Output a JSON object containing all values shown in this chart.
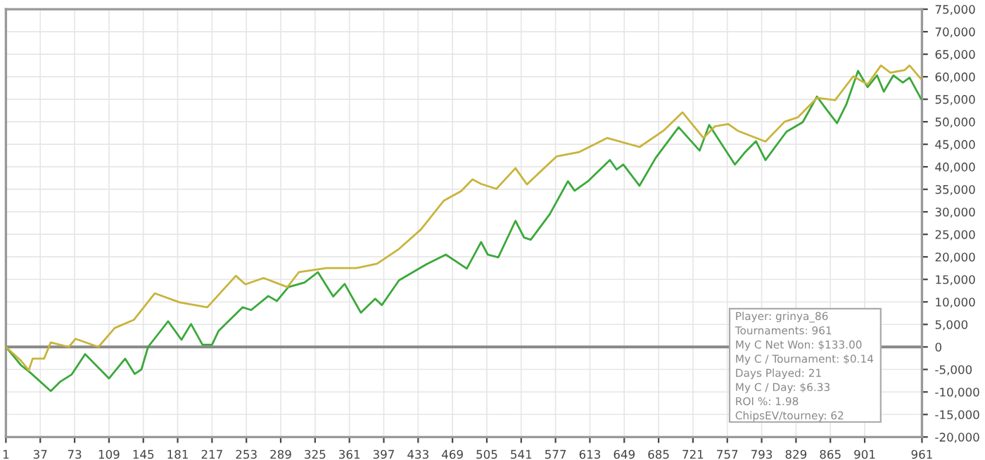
{
  "chart_data": {
    "type": "line",
    "series": [
      {
        "color": "#3aa83a",
        "x": [
          1,
          17,
          26,
          48,
          58,
          70,
          84,
          109,
          126,
          136,
          143,
          150,
          171,
          185,
          195,
          207,
          217,
          224,
          249,
          258,
          276,
          285,
          297,
          314,
          328,
          344,
          356,
          373,
          388,
          395,
          413,
          430,
          442,
          462,
          484,
          499,
          506,
          517,
          535,
          544,
          551,
          571,
          590,
          597,
          611,
          634,
          641,
          648,
          665,
          682,
          706,
          728,
          738,
          765,
          775,
          787,
          797,
          819,
          836,
          851,
          860,
          872,
          882,
          894,
          904,
          914,
          921,
          931,
          941,
          948,
          960
        ],
        "values": [
          0,
          -4100,
          -5600,
          -9800,
          -7700,
          -6100,
          -1600,
          -7000,
          -2600,
          -6000,
          -5000,
          0,
          5700,
          1600,
          5100,
          500,
          500,
          3600,
          8800,
          8200,
          11300,
          10200,
          13300,
          14300,
          16600,
          11200,
          14000,
          7600,
          10700,
          9300,
          14800,
          16900,
          18400,
          20500,
          17400,
          23300,
          20500,
          19900,
          28000,
          24300,
          23800,
          29500,
          36800,
          34700,
          36800,
          41500,
          39400,
          40500,
          35800,
          42000,
          48800,
          43600,
          49300,
          40500,
          43100,
          45700,
          41500,
          47800,
          49900,
          55600,
          53000,
          49700,
          54000,
          61300,
          57700,
          60300,
          56700,
          60300,
          58700,
          59800,
          55100
        ]
      },
      {
        "color": "#c8b43c",
        "x": [
          1,
          17,
          25,
          29,
          41,
          48,
          67,
          74,
          98,
          115,
          135,
          157,
          183,
          212,
          242,
          252,
          271,
          296,
          308,
          337,
          368,
          390,
          412,
          436,
          460,
          478,
          490,
          499,
          515,
          535,
          547,
          578,
          602,
          631,
          665,
          690,
          710,
          732,
          744,
          758,
          768,
          797,
          817,
          831,
          851,
          870,
          889,
          904,
          918,
          928,
          943,
          948,
          960
        ],
        "values": [
          0,
          -3100,
          -5200,
          -2600,
          -2600,
          1000,
          0,
          1800,
          0,
          4200,
          6000,
          11900,
          9900,
          8800,
          15800,
          13900,
          15300,
          13300,
          16600,
          17500,
          17500,
          18500,
          21600,
          26100,
          32500,
          34600,
          37200,
          36200,
          35100,
          39700,
          36100,
          42300,
          43300,
          46400,
          44400,
          48000,
          52100,
          46400,
          49000,
          49500,
          48000,
          45600,
          50000,
          51000,
          55300,
          54800,
          60100,
          58300,
          62500,
          60900,
          61500,
          62500,
          59500
        ]
      }
    ],
    "xlim": [
      1,
      961
    ],
    "xticks": [
      1,
      37,
      73,
      109,
      145,
      181,
      217,
      253,
      289,
      325,
      361,
      397,
      433,
      469,
      505,
      541,
      577,
      613,
      649,
      685,
      721,
      757,
      793,
      829,
      865,
      901,
      961
    ],
    "ylim": [
      -20000,
      75000
    ],
    "yticks": [
      {
        "value": 75000,
        "label": "75,000"
      },
      {
        "value": 70000,
        "label": "70,000"
      },
      {
        "value": 65000,
        "label": "65,000"
      },
      {
        "value": 60000,
        "label": "60,000"
      },
      {
        "value": 55000,
        "label": "55,000"
      },
      {
        "value": 50000,
        "label": "50,000"
      },
      {
        "value": 45000,
        "label": "45,000"
      },
      {
        "value": 40000,
        "label": "40,000"
      },
      {
        "value": 35000,
        "label": "35,000"
      },
      {
        "value": 30000,
        "label": "30,000"
      },
      {
        "value": 25000,
        "label": "25,000"
      },
      {
        "value": 20000,
        "label": "20,000"
      },
      {
        "value": 15000,
        "label": "15,000"
      },
      {
        "value": 10000,
        "label": "10,000"
      },
      {
        "value": 5000,
        "label": "5,000"
      },
      0,
      {
        "value": -5000,
        "label": "-5,000"
      },
      {
        "value": -10000,
        "label": "-10,000"
      },
      {
        "value": -15000,
        "label": "-15,000"
      },
      {
        "value": -20000,
        "label": "-20,000"
      }
    ],
    "grid": true,
    "ref_lines": [
      {
        "axis": "y",
        "value": 0,
        "color": "#888888"
      }
    ],
    "annotations": [
      "Player: grinya_86",
      "Tournaments: 961",
      "My C Net Won: $133.00",
      "My C / Tournament: $0.14",
      "Days Played: 21",
      "My C / Day: $6.33",
      "ROI %: 1.98",
      "ChipsEV/tourney: 62"
    ]
  }
}
